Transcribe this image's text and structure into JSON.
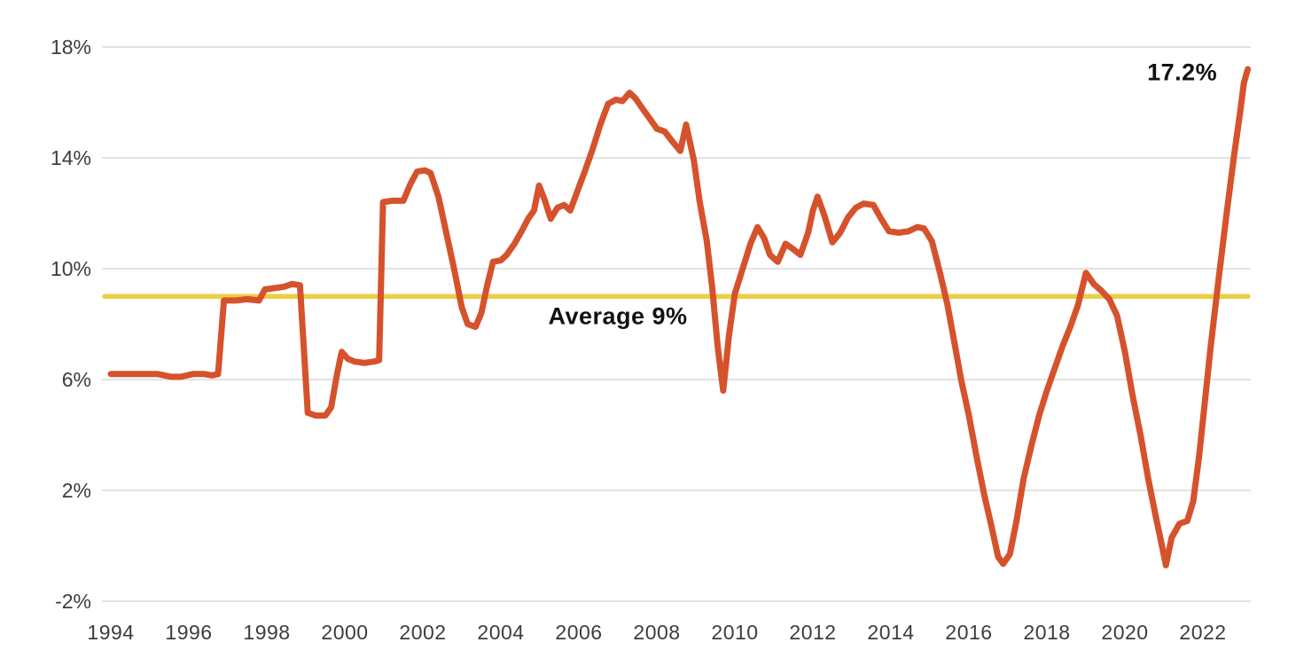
{
  "page": {
    "background_color": "#ffffff"
  },
  "chart_data": {
    "type": "line",
    "title": "",
    "xlabel": "",
    "ylabel": "",
    "grid": "horizontal",
    "y_unit": "%",
    "y_range": [
      -2,
      18
    ],
    "y_ticks": [
      18,
      14,
      10,
      6,
      2,
      -2
    ],
    "y_tick_labels": [
      "18%",
      "14%",
      "10%",
      "6%",
      "2%",
      "-2%"
    ],
    "x_ticks": [
      1994,
      1996,
      1998,
      2000,
      2002,
      2004,
      2006,
      2008,
      2010,
      2012,
      2014,
      2016,
      2018,
      2020,
      2022
    ],
    "x_tick_labels": [
      "1994",
      "1996",
      "1998",
      "2000",
      "2002",
      "2004",
      "2006",
      "2008",
      "2010",
      "2012",
      "2014",
      "2016",
      "2018",
      "2020",
      "2022"
    ],
    "x_range": [
      1993.8,
      2023.45
    ],
    "colors": {
      "series": "#D5522C",
      "average_line": "#EDCE44",
      "gridline": "#DADADA",
      "tick_text": "#3D3D3D",
      "annotation_text": "#121212"
    },
    "average_line": {
      "value": 9,
      "label": "Average 9%"
    },
    "annotations": [
      {
        "text": "17.2%",
        "anchor_year": 2021.5,
        "anchor_value": 17.3
      }
    ],
    "series": [
      {
        "name": "annual-percent-change",
        "points": [
          [
            1994.0,
            6.2
          ],
          [
            1994.4,
            6.2
          ],
          [
            1994.8,
            6.2
          ],
          [
            1995.2,
            6.2
          ],
          [
            1995.55,
            6.1
          ],
          [
            1995.8,
            6.1
          ],
          [
            1996.1,
            6.2
          ],
          [
            1996.4,
            6.2
          ],
          [
            1996.6,
            6.15
          ],
          [
            1996.75,
            6.2
          ],
          [
            1996.9,
            8.85
          ],
          [
            1997.2,
            8.85
          ],
          [
            1997.5,
            8.9
          ],
          [
            1997.8,
            8.85
          ],
          [
            1997.95,
            9.25
          ],
          [
            1998.2,
            9.3
          ],
          [
            1998.45,
            9.35
          ],
          [
            1998.65,
            9.45
          ],
          [
            1998.85,
            9.4
          ],
          [
            1999.05,
            4.8
          ],
          [
            1999.25,
            4.7
          ],
          [
            1999.5,
            4.7
          ],
          [
            1999.65,
            5.0
          ],
          [
            1999.8,
            6.2
          ],
          [
            1999.92,
            7.0
          ],
          [
            2000.08,
            6.75
          ],
          [
            2000.25,
            6.65
          ],
          [
            2000.5,
            6.6
          ],
          [
            2000.75,
            6.65
          ],
          [
            2000.88,
            6.7
          ],
          [
            2000.98,
            12.4
          ],
          [
            2001.2,
            12.45
          ],
          [
            2001.5,
            12.45
          ],
          [
            2001.68,
            13.05
          ],
          [
            2001.85,
            13.5
          ],
          [
            2002.05,
            13.55
          ],
          [
            2002.2,
            13.45
          ],
          [
            2002.4,
            12.6
          ],
          [
            2002.6,
            11.3
          ],
          [
            2002.8,
            10.0
          ],
          [
            2003.0,
            8.6
          ],
          [
            2003.15,
            8.0
          ],
          [
            2003.35,
            7.9
          ],
          [
            2003.5,
            8.4
          ],
          [
            2003.65,
            9.4
          ],
          [
            2003.8,
            10.25
          ],
          [
            2004.0,
            10.3
          ],
          [
            2004.15,
            10.5
          ],
          [
            2004.35,
            10.9
          ],
          [
            2004.55,
            11.4
          ],
          [
            2004.7,
            11.8
          ],
          [
            2004.85,
            12.1
          ],
          [
            2004.98,
            13.0
          ],
          [
            2005.12,
            12.5
          ],
          [
            2005.28,
            11.8
          ],
          [
            2005.45,
            12.2
          ],
          [
            2005.62,
            12.3
          ],
          [
            2005.78,
            12.1
          ],
          [
            2005.95,
            12.75
          ],
          [
            2006.15,
            13.5
          ],
          [
            2006.35,
            14.3
          ],
          [
            2006.55,
            15.2
          ],
          [
            2006.75,
            15.95
          ],
          [
            2006.95,
            16.1
          ],
          [
            2007.12,
            16.05
          ],
          [
            2007.3,
            16.35
          ],
          [
            2007.45,
            16.15
          ],
          [
            2007.62,
            15.8
          ],
          [
            2007.8,
            15.45
          ],
          [
            2008.0,
            15.05
          ],
          [
            2008.2,
            14.95
          ],
          [
            2008.42,
            14.55
          ],
          [
            2008.6,
            14.25
          ],
          [
            2008.75,
            15.2
          ],
          [
            2008.95,
            13.9
          ],
          [
            2009.1,
            12.4
          ],
          [
            2009.28,
            11.0
          ],
          [
            2009.42,
            9.3
          ],
          [
            2009.56,
            7.2
          ],
          [
            2009.7,
            5.6
          ],
          [
            2009.85,
            7.6
          ],
          [
            2010.0,
            9.1
          ],
          [
            2010.2,
            10.0
          ],
          [
            2010.4,
            10.9
          ],
          [
            2010.58,
            11.5
          ],
          [
            2010.75,
            11.1
          ],
          [
            2010.9,
            10.5
          ],
          [
            2011.1,
            10.25
          ],
          [
            2011.3,
            10.9
          ],
          [
            2011.5,
            10.7
          ],
          [
            2011.68,
            10.5
          ],
          [
            2011.88,
            11.3
          ],
          [
            2012.0,
            12.1
          ],
          [
            2012.12,
            12.6
          ],
          [
            2012.3,
            11.9
          ],
          [
            2012.5,
            10.95
          ],
          [
            2012.7,
            11.3
          ],
          [
            2012.9,
            11.85
          ],
          [
            2013.1,
            12.2
          ],
          [
            2013.3,
            12.35
          ],
          [
            2013.55,
            12.3
          ],
          [
            2013.75,
            11.8
          ],
          [
            2013.95,
            11.35
          ],
          [
            2014.2,
            11.3
          ],
          [
            2014.45,
            11.35
          ],
          [
            2014.68,
            11.5
          ],
          [
            2014.85,
            11.45
          ],
          [
            2015.05,
            11.0
          ],
          [
            2015.25,
            9.9
          ],
          [
            2015.45,
            8.7
          ],
          [
            2015.62,
            7.4
          ],
          [
            2015.8,
            6.0
          ],
          [
            2016.0,
            4.7
          ],
          [
            2016.2,
            3.2
          ],
          [
            2016.4,
            1.8
          ],
          [
            2016.58,
            0.7
          ],
          [
            2016.75,
            -0.4
          ],
          [
            2016.88,
            -0.65
          ],
          [
            2017.05,
            -0.3
          ],
          [
            2017.22,
            0.9
          ],
          [
            2017.4,
            2.4
          ],
          [
            2017.6,
            3.6
          ],
          [
            2017.8,
            4.7
          ],
          [
            2018.0,
            5.6
          ],
          [
            2018.2,
            6.4
          ],
          [
            2018.4,
            7.2
          ],
          [
            2018.6,
            7.9
          ],
          [
            2018.8,
            8.7
          ],
          [
            2019.0,
            9.85
          ],
          [
            2019.2,
            9.45
          ],
          [
            2019.4,
            9.2
          ],
          [
            2019.6,
            8.9
          ],
          [
            2019.8,
            8.3
          ],
          [
            2020.0,
            7.0
          ],
          [
            2020.2,
            5.4
          ],
          [
            2020.4,
            4.0
          ],
          [
            2020.6,
            2.4
          ],
          [
            2020.8,
            1.0
          ],
          [
            2020.95,
            0.0
          ],
          [
            2021.05,
            -0.7
          ],
          [
            2021.2,
            0.3
          ],
          [
            2021.4,
            0.8
          ],
          [
            2021.6,
            0.9
          ],
          [
            2021.75,
            1.6
          ],
          [
            2021.9,
            3.2
          ],
          [
            2022.05,
            5.2
          ],
          [
            2022.2,
            7.2
          ],
          [
            2022.4,
            9.6
          ],
          [
            2022.6,
            11.9
          ],
          [
            2022.8,
            14.1
          ],
          [
            2022.95,
            15.6
          ],
          [
            2023.05,
            16.7
          ],
          [
            2023.15,
            17.2
          ]
        ]
      }
    ]
  }
}
